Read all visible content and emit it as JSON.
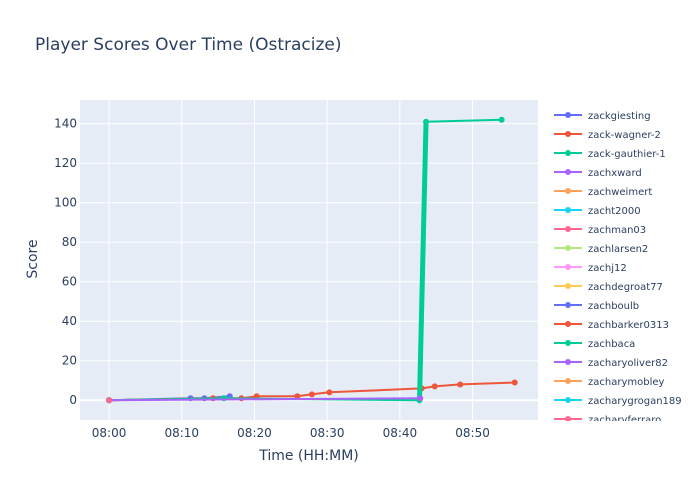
{
  "chart_data": {
    "type": "line",
    "title": "Player Scores Over Time (Ostracize)",
    "xlabel": "Time (HH:MM)",
    "ylabel": "Score",
    "xlim": [
      "07:56",
      "08:59"
    ],
    "ylim": [
      -10,
      152
    ],
    "x_ticks": [
      "08:00",
      "08:10",
      "08:20",
      "08:30",
      "08:40",
      "08:50"
    ],
    "y_ticks": [
      0,
      20,
      40,
      60,
      80,
      100,
      120,
      140
    ],
    "grid": true,
    "background": "#e5ecf6",
    "legend_position": "right",
    "series": [
      {
        "name": "zackgiesting",
        "color": "#636efa",
        "x": [
          "08:00",
          "08:11.2",
          "08:13.1",
          "08:16.6"
        ],
        "y": [
          0,
          1,
          1,
          2
        ]
      },
      {
        "name": "zack-wagner-2",
        "color": "#ef553b",
        "x": [
          "08:00",
          "08:14.3",
          "08:18.2",
          "08:20.3",
          "08:25.9",
          "08:27.9",
          "08:30.3",
          "08:43.0",
          "08:44.8",
          "08:48.3",
          "08:55.8"
        ],
        "y": [
          0,
          1,
          1,
          2,
          2,
          3,
          4,
          6,
          7,
          8,
          9
        ]
      },
      {
        "name": "zack-gauthier-1",
        "color": "#00cc96",
        "x": [
          "08:00",
          "08:15.8",
          "08:42.7",
          "08:43.6",
          "08:54.0"
        ],
        "y": [
          0,
          1,
          0,
          141,
          142
        ]
      },
      {
        "name": "zachxward",
        "color": "#ab63fa",
        "x": [
          "08:00",
          "08:42.8"
        ],
        "y": [
          0,
          1
        ]
      },
      {
        "name": "zachweimert",
        "color": "#ffa15a",
        "x": [
          "08:00"
        ],
        "y": [
          0
        ]
      },
      {
        "name": "zacht2000",
        "color": "#19d3f3",
        "x": [
          "08:00"
        ],
        "y": [
          0
        ]
      },
      {
        "name": "zachman03",
        "color": "#ff6692",
        "x": [
          "08:00"
        ],
        "y": [
          0
        ]
      },
      {
        "name": "zachlarsen2",
        "color": "#b6e880",
        "x": [
          "08:00"
        ],
        "y": [
          0
        ]
      },
      {
        "name": "zachj12",
        "color": "#ff97ff",
        "x": [
          "08:00"
        ],
        "y": [
          0
        ]
      },
      {
        "name": "zachdegroat77",
        "color": "#fecb52",
        "x": [
          "08:00"
        ],
        "y": [
          0
        ]
      },
      {
        "name": "zachboulb",
        "color": "#636efa",
        "x": [
          "08:00"
        ],
        "y": [
          0
        ]
      },
      {
        "name": "zachbarker0313",
        "color": "#ef553b",
        "x": [
          "08:00"
        ],
        "y": [
          0
        ]
      },
      {
        "name": "zachbaca",
        "color": "#00cc96",
        "x": [
          "08:00"
        ],
        "y": [
          0
        ]
      },
      {
        "name": "zacharyoliver82",
        "color": "#ab63fa",
        "x": [
          "08:00"
        ],
        "y": [
          0
        ]
      },
      {
        "name": "zacharymobley",
        "color": "#ffa15a",
        "x": [
          "08:00"
        ],
        "y": [
          0
        ]
      },
      {
        "name": "zacharygrogan189",
        "color": "#19d3f3",
        "x": [
          "08:00"
        ],
        "y": [
          0
        ]
      },
      {
        "name": "zacharyferraro",
        "color": "#ff6692",
        "x": [
          "08:00"
        ],
        "y": [
          0
        ]
      }
    ]
  }
}
